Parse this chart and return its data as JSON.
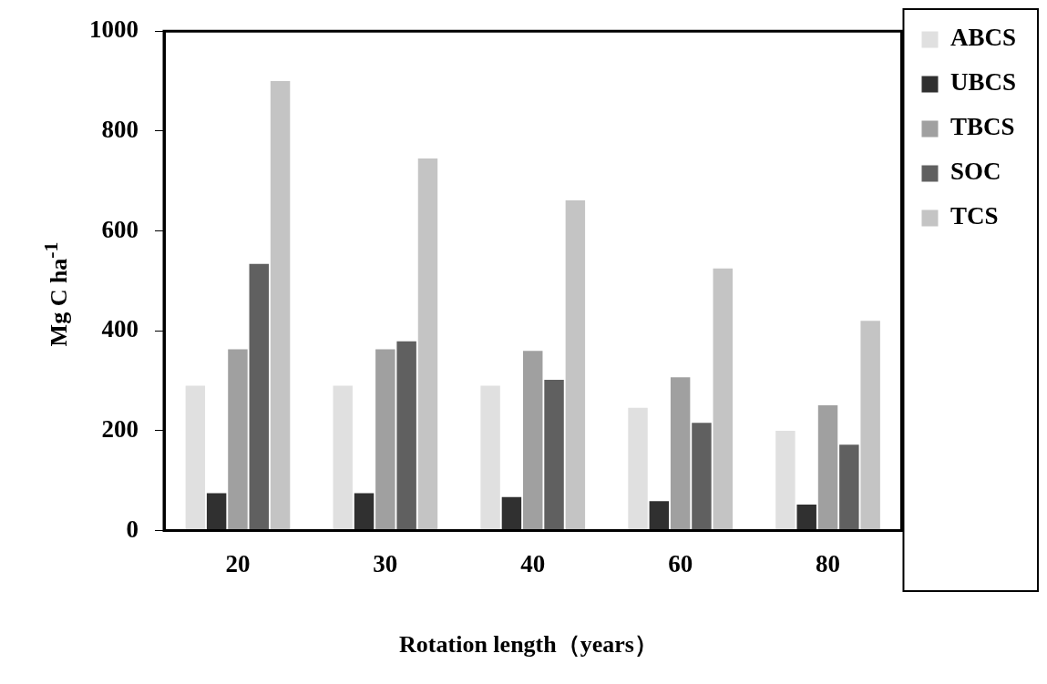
{
  "chart_data": {
    "type": "bar",
    "xlabel": "Rotation length（years）",
    "ylabel": "Mg C ha$^{-1}$",
    "categories": [
      "20",
      "30",
      "40",
      "60",
      "80"
    ],
    "series": [
      {
        "name": "ABCS",
        "color": "#e0e0e0",
        "values": [
          290,
          290,
          290,
          246,
          200
        ]
      },
      {
        "name": "UBCS",
        "color": "#303030",
        "values": [
          75,
          75,
          67,
          59,
          52
        ]
      },
      {
        "name": "TBCS",
        "color": "#a0a0a0",
        "values": [
          363,
          363,
          360,
          307,
          251
        ]
      },
      {
        "name": "SOC",
        "color": "#606060",
        "values": [
          534,
          379,
          302,
          216,
          172
        ]
      },
      {
        "name": "TCS",
        "color": "#c4c4c4",
        "values": [
          900,
          745,
          661,
          525,
          420
        ]
      }
    ],
    "ylim": [
      0,
      1000
    ],
    "yticks": [
      0,
      200,
      400,
      600,
      800,
      1000
    ],
    "grid": false,
    "legend": "top right"
  }
}
